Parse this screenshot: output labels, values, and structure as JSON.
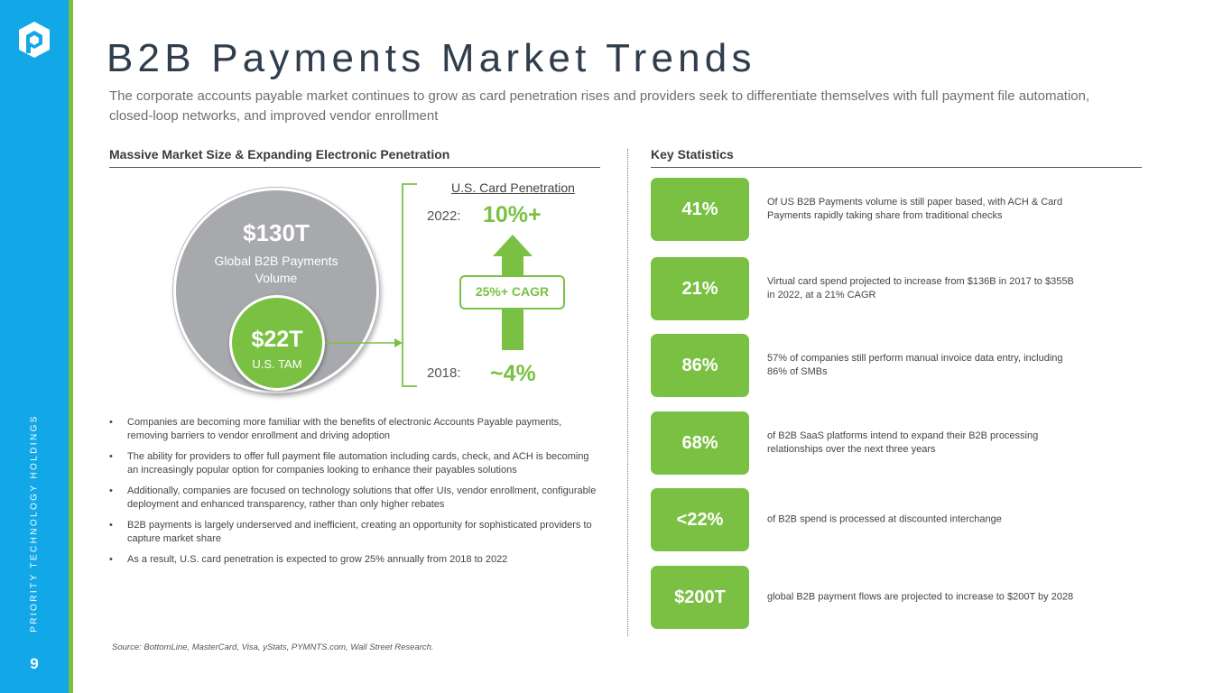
{
  "brand": {
    "accent_blue": "#12a8e8",
    "accent_green": "#7ac143",
    "logo_icon": "priority-cube-logo",
    "vertical_text": "PRIORITY TECHNOLOGY HOLDINGS",
    "page_number": "9"
  },
  "header": {
    "title": "B2B Payments Market Trends",
    "subtitle": "The corporate accounts payable market continues to grow as card penetration rises and providers seek to differentiate themselves with full payment file automation, closed-loop networks, and improved vendor enrollment"
  },
  "left": {
    "heading": "Massive Market Size & Expanding Electronic Penetration",
    "global": {
      "value": "$130T",
      "label": "Global B2B Payments Volume"
    },
    "us": {
      "value": "$22T",
      "label": "U.S. TAM"
    },
    "penetration": {
      "title": "U.S. Card Penetration",
      "year_2022": "2022:",
      "value_2022": "10%+",
      "cagr": "25%+ CAGR",
      "year_2018": "2018:",
      "value_2018": "~4%"
    },
    "bullets": [
      "Companies are becoming more familiar with the benefits of electronic Accounts Payable payments, removing barriers to vendor enrollment and driving adoption",
      "The ability for providers to offer full payment file automation including cards, check, and ACH is becoming an increasingly popular option for companies looking to enhance their payables solutions",
      "Additionally, companies are focused on technology solutions that offer UIs, vendor enrollment, configurable deployment and enhanced transparency, rather than only higher rebates",
      "B2B payments is largely underserved and inefficient, creating an opportunity for sophisticated providers to capture market share",
      "As a result, U.S. card penetration is expected to grow 25% annually from 2018 to 2022"
    ],
    "source": "Source: BottomLine, MasterCard, Visa, yStats, PYMNTS.com, Wall Street Research."
  },
  "right": {
    "heading": "Key Statistics",
    "stats": [
      {
        "value": "41%",
        "text": "Of US B2B Payments volume is still paper based, with ACH & Card Payments rapidly taking share from traditional checks"
      },
      {
        "value": "21%",
        "text": "Virtual card spend projected to increase from $136B in 2017 to $355B in 2022, at a 21% CAGR"
      },
      {
        "value": "86%",
        "text": "57% of companies still perform manual invoice data entry, including 86% of SMBs"
      },
      {
        "value": "68%",
        "text": "of B2B SaaS platforms intend to expand their B2B processing relationships over the next three years"
      },
      {
        "value": "<22%",
        "text": "of B2B spend is processed at discounted interchange"
      },
      {
        "value": "$200T",
        "text": "global B2B payment flows are projected to increase to $200T by 2028"
      }
    ]
  }
}
